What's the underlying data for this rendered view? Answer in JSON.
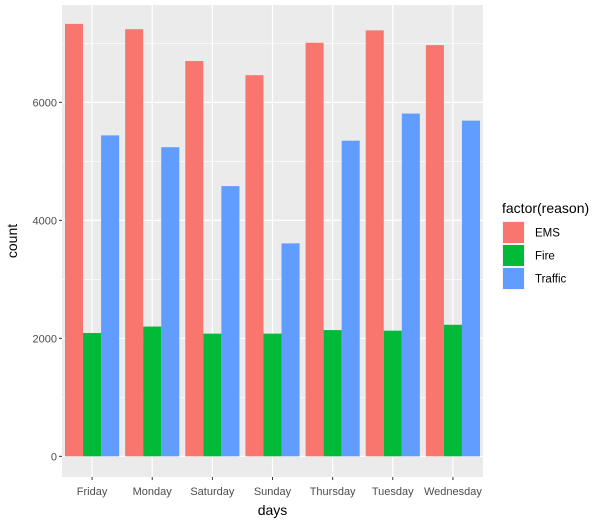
{
  "chart_data": {
    "type": "bar",
    "xlabel": "days",
    "ylabel": "count",
    "categories": [
      "Friday",
      "Monday",
      "Saturday",
      "Sunday",
      "Thursday",
      "Tuesday",
      "Wednesday"
    ],
    "ylim": [
      -350,
      7650
    ],
    "yticks": [
      0,
      2000,
      4000,
      6000
    ],
    "ytick_labels": [
      "0",
      "2000",
      "4000",
      "6000"
    ],
    "grid": true,
    "legend": {
      "title": "factor(reason)",
      "position": "right",
      "entries": [
        "EMS",
        "Fire",
        "Traffic"
      ]
    },
    "series": [
      {
        "name": "EMS",
        "color": "#F8766D",
        "values": [
          7330,
          7240,
          6700,
          6460,
          7010,
          7220,
          6970
        ]
      },
      {
        "name": "Fire",
        "color": "#00BA38",
        "values": [
          2090,
          2200,
          2080,
          2080,
          2140,
          2130,
          2230
        ]
      },
      {
        "name": "Traffic",
        "color": "#619CFF",
        "values": [
          5440,
          5240,
          4580,
          3610,
          5350,
          5810,
          5690
        ]
      }
    ],
    "panel_background": "#EBEBEB",
    "grid_color": "#FFFFFF"
  }
}
